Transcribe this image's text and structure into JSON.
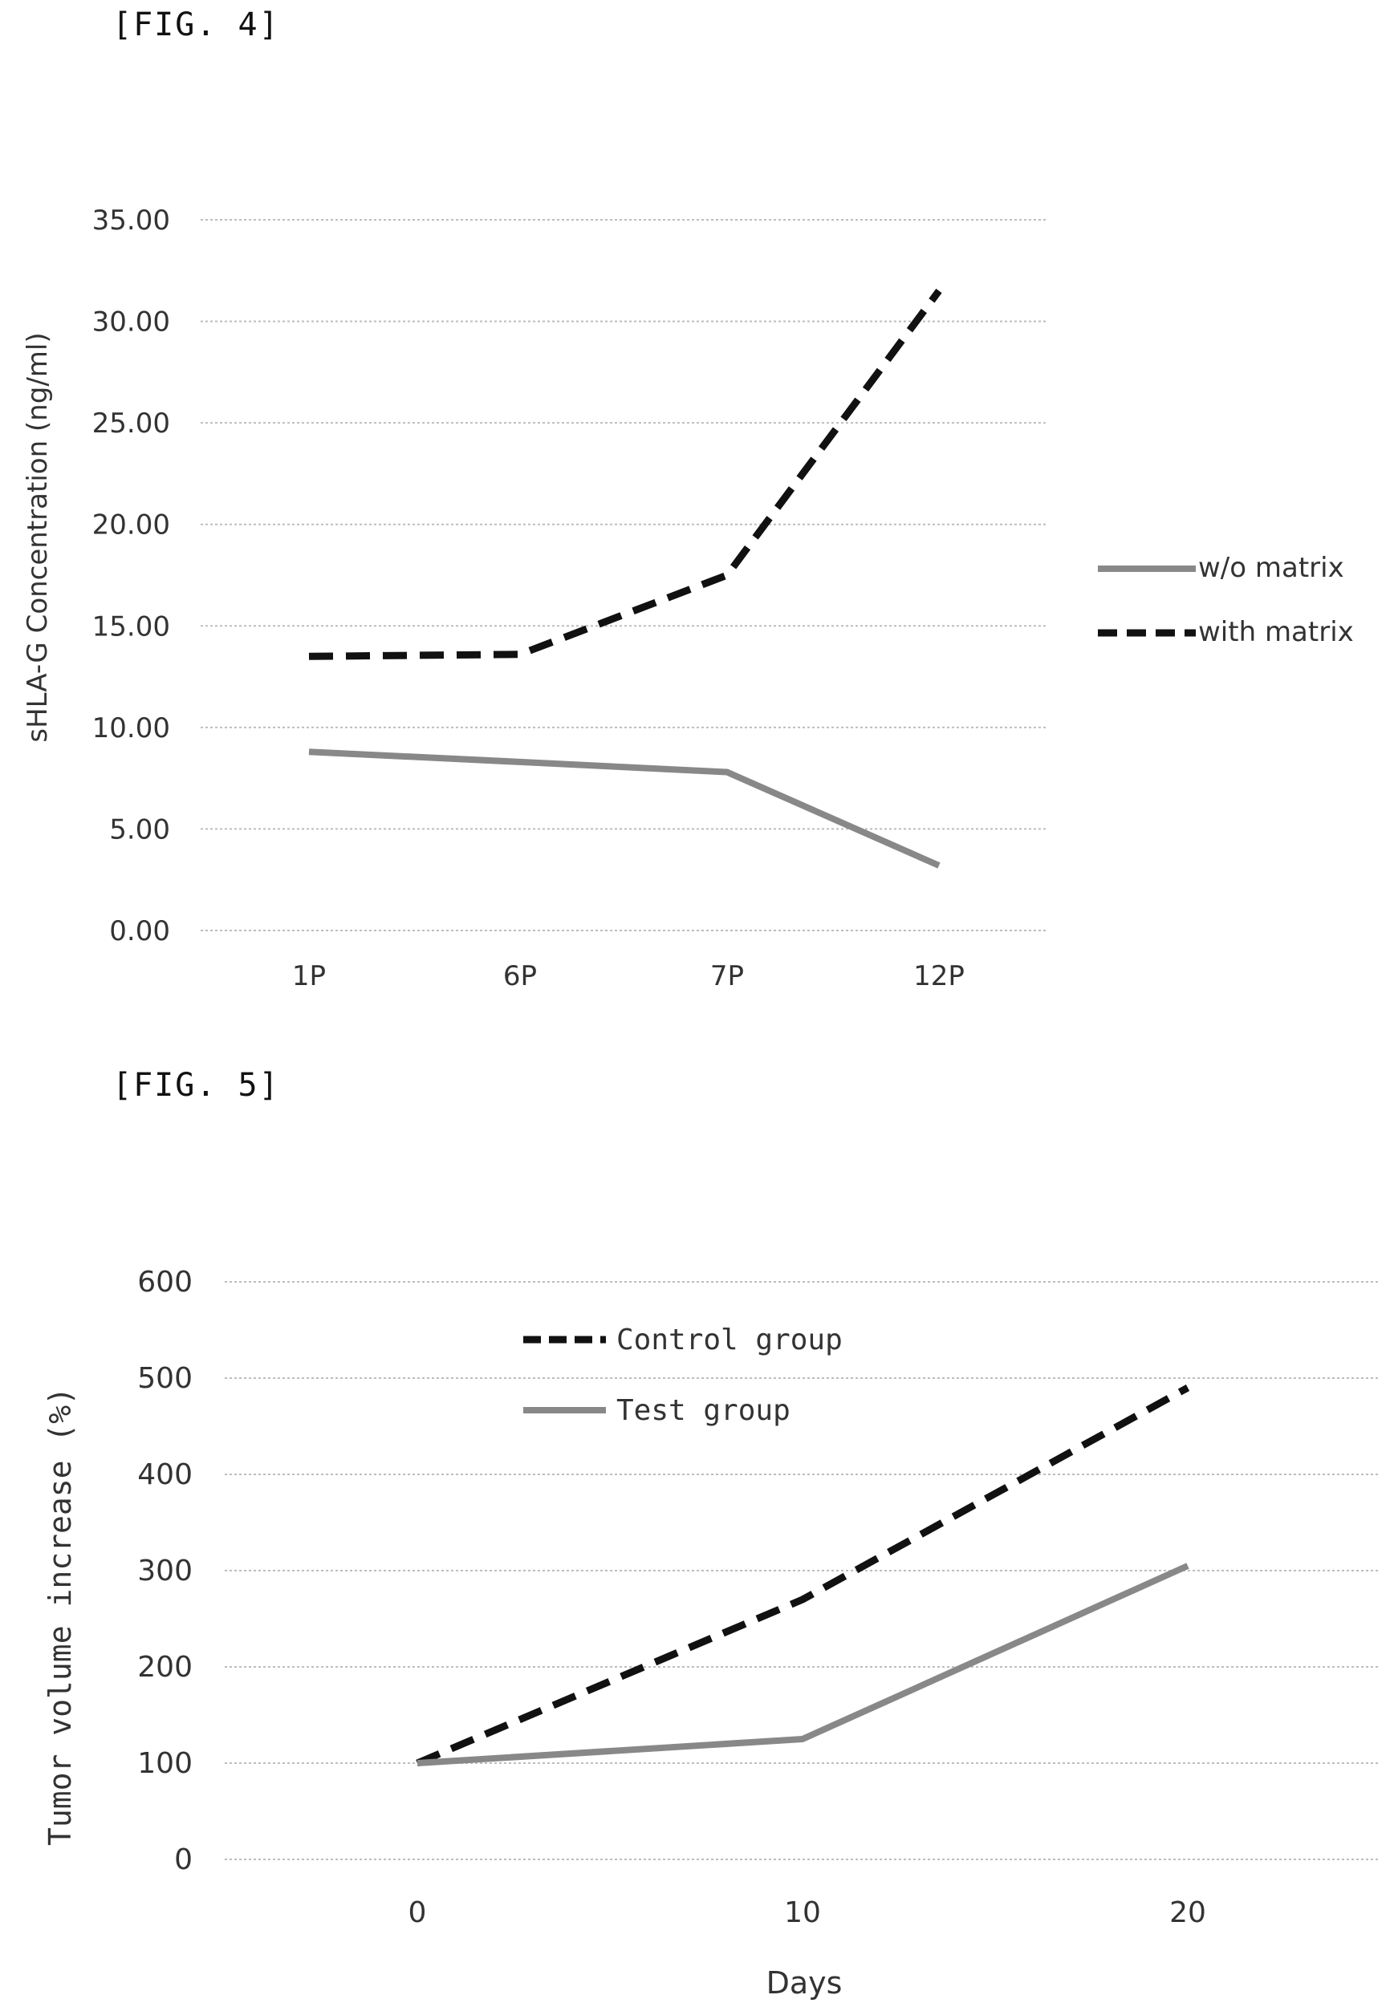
{
  "figures": {
    "fig4_label": "[FIG. 4]",
    "fig5_label": "[FIG. 5]"
  },
  "chart_data": [
    {
      "type": "line",
      "categories": [
        "1P",
        "6P",
        "7P",
        "12P"
      ],
      "series": [
        {
          "name": "w/o matrix",
          "values": [
            8.8,
            8.3,
            7.8,
            3.2
          ],
          "color": "#888888",
          "style": "solid"
        },
        {
          "name": "with matrix",
          "values": [
            13.5,
            13.6,
            17.5,
            31.5
          ],
          "color": "#111111",
          "style": "dashed"
        }
      ],
      "ylabel": "sHLA-G Concentration (ng/ml)",
      "ylim": [
        0,
        35
      ],
      "yticks": [
        "0.00",
        "5.00",
        "10.00",
        "15.00",
        "20.00",
        "25.00",
        "30.00",
        "35.00"
      ],
      "grid": true,
      "legend": "right"
    },
    {
      "type": "line",
      "x": [
        0,
        10,
        20
      ],
      "xticks": [
        "0",
        "10",
        "20"
      ],
      "series": [
        {
          "name": "Control group",
          "values": [
            100,
            270,
            490
          ],
          "color": "#111111",
          "style": "dashed"
        },
        {
          "name": "Test group",
          "values": [
            100,
            125,
            305
          ],
          "color": "#888888",
          "style": "solid"
        }
      ],
      "xlabel": "Days",
      "ylabel": "Tumor volume increase (%)",
      "ylim": [
        0,
        600
      ],
      "yticks": [
        "0",
        "100",
        "200",
        "300",
        "400",
        "500",
        "600"
      ],
      "grid": true,
      "legend": "top-left"
    }
  ]
}
